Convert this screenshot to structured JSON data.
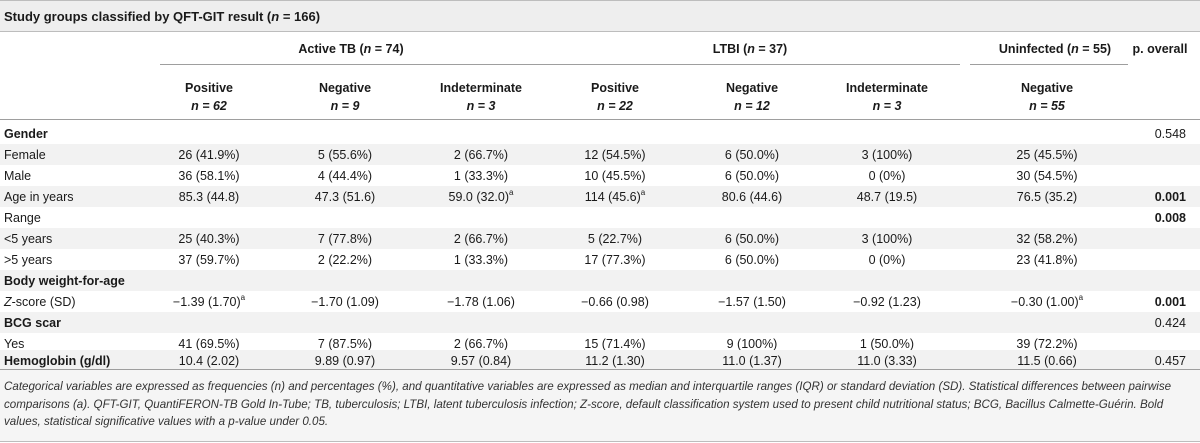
{
  "title": {
    "prefix": "Study groups classified by QFT-GIT result (",
    "n": "n",
    "suffix": " = 166)"
  },
  "groups": [
    {
      "name": "Active TB (",
      "n": "n",
      "count": " = 74)"
    },
    {
      "name": "LTBI (",
      "n": "n",
      "count": " = 37)"
    },
    {
      "name": "Uninfected (",
      "n": "n",
      "count": " = 55)"
    },
    {
      "name": "p. overall",
      "n": "",
      "count": ""
    }
  ],
  "subheaders": [
    {
      "label": "Positive",
      "n": "n = 62"
    },
    {
      "label": "Negative",
      "n": "n = 9"
    },
    {
      "label": "Indeterminate",
      "n": "n = 3"
    },
    {
      "label": "Positive",
      "n": "n = 22"
    },
    {
      "label": "Negative",
      "n": "n = 12"
    },
    {
      "label": "Indeterminate",
      "n": "n = 3"
    },
    {
      "label": "Negative",
      "n": "n = 55"
    }
  ],
  "rows": [
    {
      "label": "Gender",
      "bold": true,
      "italic": "",
      "cells": [
        "",
        "",
        "",
        "",
        "",
        "",
        ""
      ],
      "sup": [],
      "p": "0.548",
      "p_bold": false
    },
    {
      "label": "Female",
      "bold": false,
      "italic": "",
      "cells": [
        "26 (41.9%)",
        "5 (55.6%)",
        "2 (66.7%)",
        "12 (54.5%)",
        "6 (50.0%)",
        "3 (100%)",
        "25 (45.5%)"
      ],
      "sup": [],
      "p": "",
      "p_bold": false
    },
    {
      "label": "Male",
      "bold": false,
      "italic": "",
      "cells": [
        "36 (58.1%)",
        "4 (44.4%)",
        "1 (33.3%)",
        "10 (45.5%)",
        "6 (50.0%)",
        "0 (0%)",
        "30 (54.5%)"
      ],
      "sup": [],
      "p": "",
      "p_bold": false
    },
    {
      "label": "Age in years",
      "bold": false,
      "italic": "",
      "cells": [
        "85.3 (44.8)",
        "47.3 (51.6)",
        "59.0 (32.0)",
        "114 (45.6)",
        "80.6 (44.6)",
        "48.7 (19.5)",
        "76.5 (35.2)"
      ],
      "sup": [
        2,
        3
      ],
      "p": "0.001",
      "p_bold": true
    },
    {
      "label": "Range",
      "bold": false,
      "italic": "",
      "cells": [
        "",
        "",
        "",
        "",
        "",
        "",
        ""
      ],
      "sup": [],
      "p": "0.008",
      "p_bold": true
    },
    {
      "label": "<5 years",
      "bold": false,
      "italic": "",
      "cells": [
        "25 (40.3%)",
        "7 (77.8%)",
        "2 (66.7%)",
        "5 (22.7%)",
        "6 (50.0%)",
        "3 (100%)",
        "32 (58.2%)"
      ],
      "sup": [],
      "p": "",
      "p_bold": false
    },
    {
      "label": ">5 years",
      "bold": false,
      "italic": "",
      "cells": [
        "37 (59.7%)",
        "2 (22.2%)",
        "1 (33.3%)",
        "17 (77.3%)",
        "6 (50.0%)",
        "0 (0%)",
        "23 (41.8%)"
      ],
      "sup": [],
      "p": "",
      "p_bold": false
    },
    {
      "label": "Body weight-for-age",
      "bold": true,
      "italic": "",
      "cells": [
        "",
        "",
        "",
        "",
        "",
        "",
        ""
      ],
      "sup": [],
      "p": "",
      "p_bold": false
    },
    {
      "label": "-score (SD)",
      "bold": false,
      "italic": "Z",
      "cells": [
        "−1.39 (1.70)",
        "−1.70 (1.09)",
        "−1.78 (1.06)",
        "−0.66 (0.98)",
        "−1.57 (1.50)",
        "−0.92 (1.23)",
        "−0.30 (1.00)"
      ],
      "sup": [
        0,
        6
      ],
      "p": "0.001",
      "p_bold": true
    },
    {
      "label": "BCG scar",
      "bold": true,
      "italic": "",
      "cells": [
        "",
        "",
        "",
        "",
        "",
        "",
        ""
      ],
      "sup": [],
      "p": "0.424",
      "p_bold": false
    },
    {
      "label": "Yes",
      "bold": false,
      "italic": "",
      "cells": [
        "41 (69.5%)",
        "7 (87.5%)",
        "2 (66.7%)",
        "15 (71.4%)",
        "9 (100%)",
        "1 (50.0%)",
        "39 (72.2%)"
      ],
      "sup": [],
      "p": "",
      "p_bold": false
    },
    {
      "label": "Hemoglobin (g/dl)",
      "bold": true,
      "italic": "",
      "cells": [
        "10.4 (2.02)",
        "9.89 (0.97)",
        "9.57 (0.84)",
        "11.2 (1.30)",
        "11.0 (1.37)",
        "11.0 (3.33)",
        "11.5 (0.66)"
      ],
      "sup": [],
      "p": "0.457",
      "p_bold": false
    }
  ],
  "superscript": "a",
  "footnote": "Categorical variables are expressed as frequencies (n) and percentages (%), and quantitative variables are expressed as median and interquartile ranges (IQR) or standard deviation (SD). Statistical differences between pairwise comparisons (a). QFT-GIT, QuantiFERON-TB Gold In-Tube; TB, tuberculosis; LTBI, latent tuberculosis infection; Z-score, default classification system used to present child nutritional status; BCG, Bacillus Calmette-Guérin. Bold values, statistical significative values with a p-value under 0.05."
}
